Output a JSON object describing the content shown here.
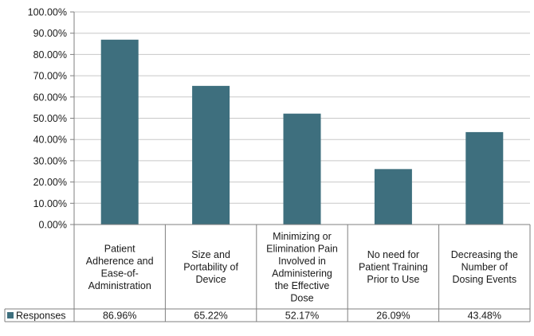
{
  "chart_data": {
    "type": "bar",
    "categories": [
      "Patient Adherence and Ease-of-Administration",
      "Size and Portability of Device",
      "Minimizing or Elimination Pain Involved in Administering the Effective Dose",
      "No need for Patient Training Prior to Use",
      "Decreasing the Number of Dosing Events"
    ],
    "category_lines": [
      [
        "Patient",
        "Adherence and",
        "Ease-of-",
        "Administration"
      ],
      [
        "Size and",
        "Portability of",
        "Device"
      ],
      [
        "Minimizing or",
        "Elimination Pain",
        "Involved in",
        "Administering",
        "the Effective",
        "Dose"
      ],
      [
        "No need for",
        "Patient Training",
        "Prior to Use"
      ],
      [
        "Decreasing the",
        "Number of",
        "Dosing Events"
      ]
    ],
    "series": [
      {
        "name": "Responses",
        "values": [
          86.96,
          65.22,
          52.17,
          26.09,
          43.48
        ],
        "labels": [
          "86.96%",
          "65.22%",
          "52.17%",
          "26.09%",
          "43.48%"
        ],
        "color": "#3e6f7e"
      }
    ],
    "y_ticks": [
      "0.00%",
      "10.00%",
      "20.00%",
      "30.00%",
      "40.00%",
      "50.00%",
      "60.00%",
      "70.00%",
      "80.00%",
      "90.00%",
      "100.00%"
    ],
    "ylim": [
      0,
      100
    ],
    "grid": true,
    "legend": "data-table-left",
    "title": "",
    "xlabel": "",
    "ylabel": ""
  }
}
